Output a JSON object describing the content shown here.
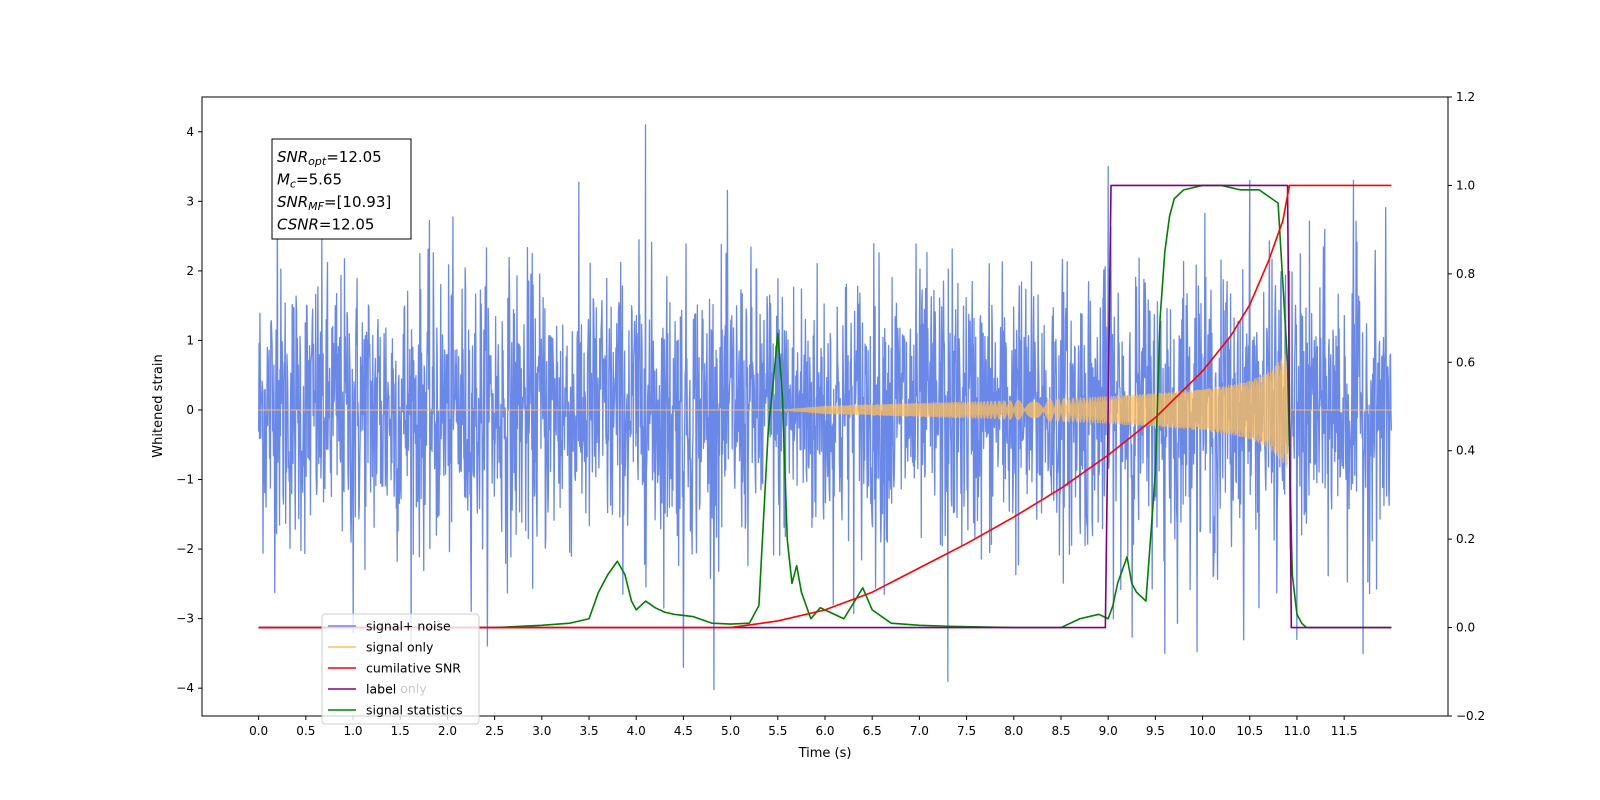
{
  "chart_data": {
    "type": "line",
    "title": "",
    "xlabel": "Time (s)",
    "ylabel": "Whitened strain",
    "ylabel_right": "",
    "xlim": [
      -0.6,
      12.6
    ],
    "ylim": [
      -4.4,
      4.5
    ],
    "ylim_right": [
      -0.2,
      1.2
    ],
    "x_ticks": [
      0.0,
      0.5,
      1.0,
      1.5,
      2.0,
      2.5,
      3.0,
      3.5,
      4.0,
      4.5,
      5.0,
      5.5,
      6.0,
      6.5,
      7.0,
      7.5,
      8.0,
      8.5,
      9.0,
      9.5,
      10.0,
      10.5,
      11.0,
      11.5
    ],
    "x_tick_labels": [
      "0.0",
      "0.5",
      "1.0",
      "1.5",
      "2.0",
      "2.5",
      "3.0",
      "3.5",
      "4.0",
      "4.5",
      "5.0",
      "5.5",
      "6.0",
      "6.5",
      "7.0",
      "7.5",
      "8.0",
      "8.5",
      "9.0",
      "9.5",
      "10.0",
      "10.5",
      "11.0",
      "11.5"
    ],
    "y_ticks": [
      -4,
      -3,
      -2,
      -1,
      0,
      1,
      2,
      3,
      4
    ],
    "y_tick_labels": [
      "−4",
      "−3",
      "−2",
      "−1",
      "0",
      "1",
      "2",
      "3",
      "4"
    ],
    "y_right_ticks": [
      -0.2,
      0.0,
      0.2,
      0.4,
      0.6,
      0.8,
      1.0,
      1.2
    ],
    "y_right_tick_labels": [
      "−0.2",
      "0.0",
      "0.2",
      "0.4",
      "0.6",
      "0.8",
      "1.0",
      "1.2"
    ],
    "grid": false,
    "legend_position": "lower-left",
    "legend": [
      {
        "label": "signal+ noise",
        "color": "#6a88e8"
      },
      {
        "label": "signal only",
        "color": "#ffbf5a"
      },
      {
        "label": "cumilative SNR",
        "color": "#ff0000"
      },
      {
        "label": "label",
        "color": "#800080"
      },
      {
        "label": "signal statistics",
        "color": "#008000"
      }
    ],
    "legend_hidden_text": [
      "label only"
    ],
    "annotation": [
      {
        "base": "SNR",
        "sub": "opt",
        "value": "=12.05"
      },
      {
        "base": "M",
        "sub": "c",
        "value": "=5.65"
      },
      {
        "base": "SNR",
        "sub": "MF",
        "value": "=[10.93]"
      },
      {
        "base": "CSNR",
        "sub": "",
        "value": "=12.05"
      }
    ],
    "series": [
      {
        "name": "signal+ noise",
        "axis": "left",
        "color": "#6a88e8",
        "description_stats": {
          "x_start": 0.0,
          "x_end": 12.0,
          "std": 1.0
        },
        "notable_points": {
          "x": [
            0.2,
            1.0,
            4.1,
            4.5,
            7.3,
            9.0,
            9.6,
            10.5,
            11.0,
            11.6,
            11.7
          ],
          "y": [
            3.2,
            -3.2,
            4.1,
            -3.7,
            -3.9,
            3.5,
            -3.5,
            3.3,
            -3.3,
            3.3,
            -3.5
          ]
        }
      },
      {
        "name": "signal only",
        "axis": "left",
        "color": "#ffbf5a",
        "envelope_x": [
          0.0,
          5.5,
          6.0,
          7.0,
          8.0,
          9.0,
          9.5,
          10.0,
          10.3,
          10.5,
          10.7,
          10.8,
          10.9,
          10.92,
          12.0
        ],
        "envelope_y": [
          0.0,
          0.0,
          0.06,
          0.1,
          0.14,
          0.2,
          0.24,
          0.3,
          0.36,
          0.42,
          0.55,
          0.68,
          0.85,
          0.0,
          0.0
        ]
      },
      {
        "name": "cumilative SNR",
        "axis": "right",
        "color": "#ff0000",
        "x": [
          0.0,
          5.0,
          5.5,
          6.0,
          6.5,
          7.0,
          7.5,
          8.0,
          8.5,
          9.0,
          9.5,
          10.0,
          10.3,
          10.5,
          10.7,
          10.85,
          10.92,
          12.0
        ],
        "y": [
          0.0,
          0.0,
          0.015,
          0.04,
          0.08,
          0.135,
          0.19,
          0.25,
          0.315,
          0.39,
          0.475,
          0.58,
          0.66,
          0.73,
          0.83,
          0.92,
          1.0,
          1.0
        ]
      },
      {
        "name": "label",
        "axis": "right",
        "color": "#800080",
        "x": [
          0.0,
          8.97,
          9.03,
          10.9,
          10.94,
          12.0
        ],
        "y": [
          0.0,
          0.0,
          1.0,
          1.0,
          0.0,
          0.0
        ]
      },
      {
        "name": "signal statistics",
        "axis": "right",
        "color": "#008000",
        "x": [
          0.0,
          2.5,
          3.0,
          3.3,
          3.5,
          3.6,
          3.7,
          3.8,
          3.88,
          3.95,
          4.0,
          4.1,
          4.2,
          4.3,
          4.4,
          4.6,
          4.8,
          5.0,
          5.2,
          5.3,
          5.4,
          5.45,
          5.5,
          5.55,
          5.6,
          5.65,
          5.7,
          5.75,
          5.8,
          5.85,
          5.95,
          6.05,
          6.2,
          6.4,
          6.5,
          6.7,
          7.0,
          7.3,
          7.5,
          8.0,
          8.5,
          8.7,
          8.9,
          9.0,
          9.05,
          9.1,
          9.2,
          9.25,
          9.3,
          9.4,
          9.5,
          9.55,
          9.6,
          9.65,
          9.7,
          9.75,
          9.8,
          9.9,
          10.0,
          10.2,
          10.4,
          10.6,
          10.8,
          10.9,
          10.95,
          11.0,
          11.05,
          11.1,
          11.2,
          12.0
        ],
        "y": [
          0.0,
          0.0,
          0.005,
          0.01,
          0.02,
          0.08,
          0.12,
          0.15,
          0.12,
          0.06,
          0.04,
          0.06,
          0.045,
          0.035,
          0.03,
          0.025,
          0.01,
          0.008,
          0.01,
          0.05,
          0.45,
          0.55,
          0.665,
          0.52,
          0.2,
          0.1,
          0.14,
          0.08,
          0.05,
          0.02,
          0.045,
          0.035,
          0.02,
          0.09,
          0.04,
          0.01,
          0.005,
          0.003,
          0.002,
          0.0,
          0.0,
          0.02,
          0.03,
          0.02,
          0.05,
          0.1,
          0.16,
          0.1,
          0.08,
          0.06,
          0.35,
          0.7,
          0.85,
          0.93,
          0.97,
          0.98,
          0.99,
          0.995,
          1.0,
          1.0,
          0.99,
          0.99,
          0.96,
          0.6,
          0.12,
          0.03,
          0.01,
          0.0,
          0.0,
          0.0
        ]
      }
    ]
  }
}
